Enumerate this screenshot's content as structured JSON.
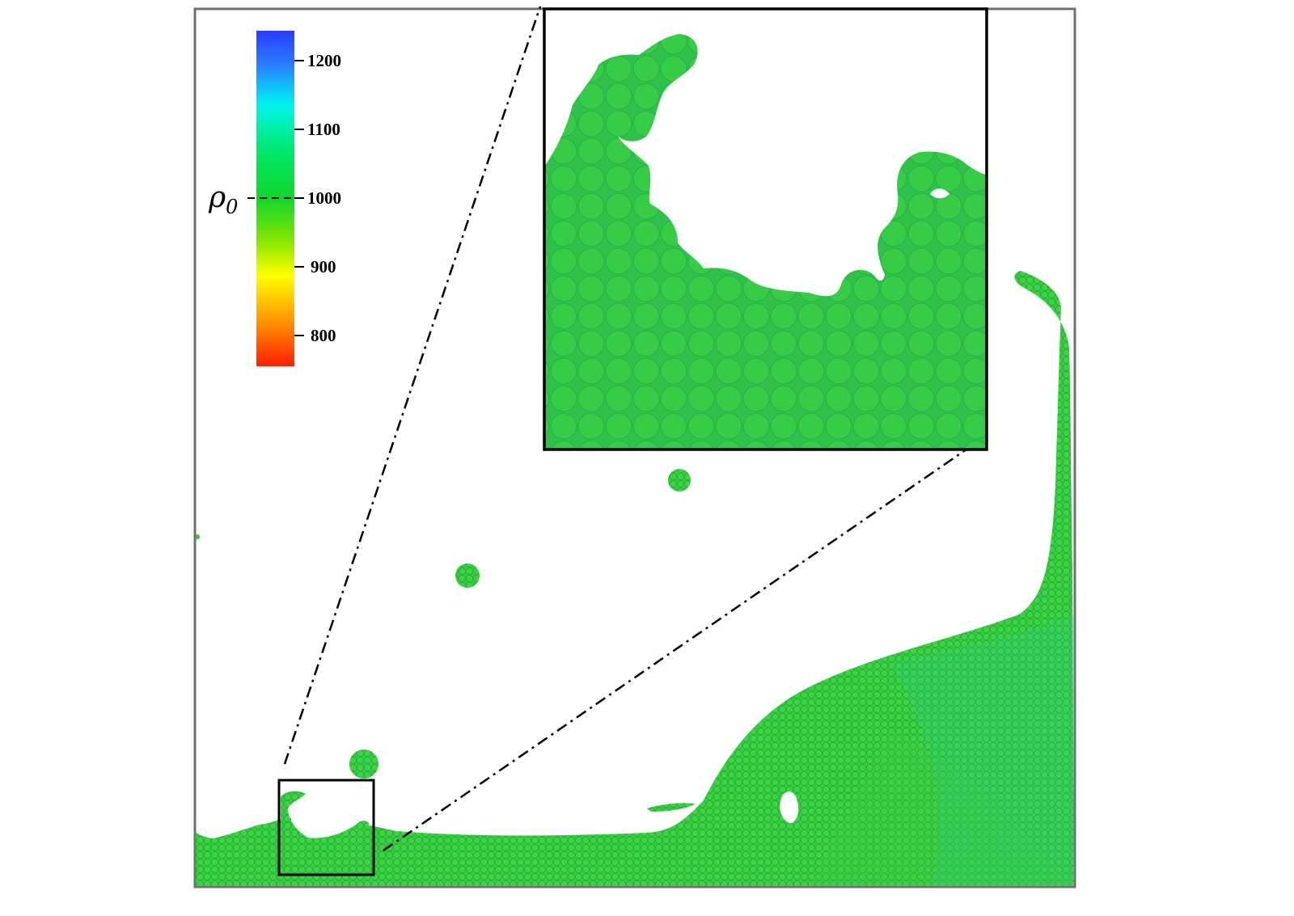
{
  "colorbar": {
    "symbol": "ρ",
    "symbol_subscript": "0",
    "reference_tick_value": 1000,
    "ticks": [
      {
        "value": 1200,
        "label": "1200"
      },
      {
        "value": 1100,
        "label": "1100"
      },
      {
        "value": 1000,
        "label": "1000"
      },
      {
        "value": 900,
        "label": "900"
      },
      {
        "value": 800,
        "label": "800"
      }
    ],
    "colors": {
      "high": "#2a3cff",
      "cyan": "#00f4ee",
      "green": "#00e84a",
      "yellow": "#ffff00",
      "orange": "#ff9a00",
      "low": "#ff1e00"
    }
  },
  "fluid": {
    "particle_color": "#33cc33",
    "particle_edge_color": "#1faa3a",
    "deep_color": "#2ec98a",
    "air_pocket": "void-in-fluid"
  },
  "frame": {
    "border_color": "#707070",
    "zoom_box_color": "#000000",
    "leader_line_style": "dash-dot"
  }
}
